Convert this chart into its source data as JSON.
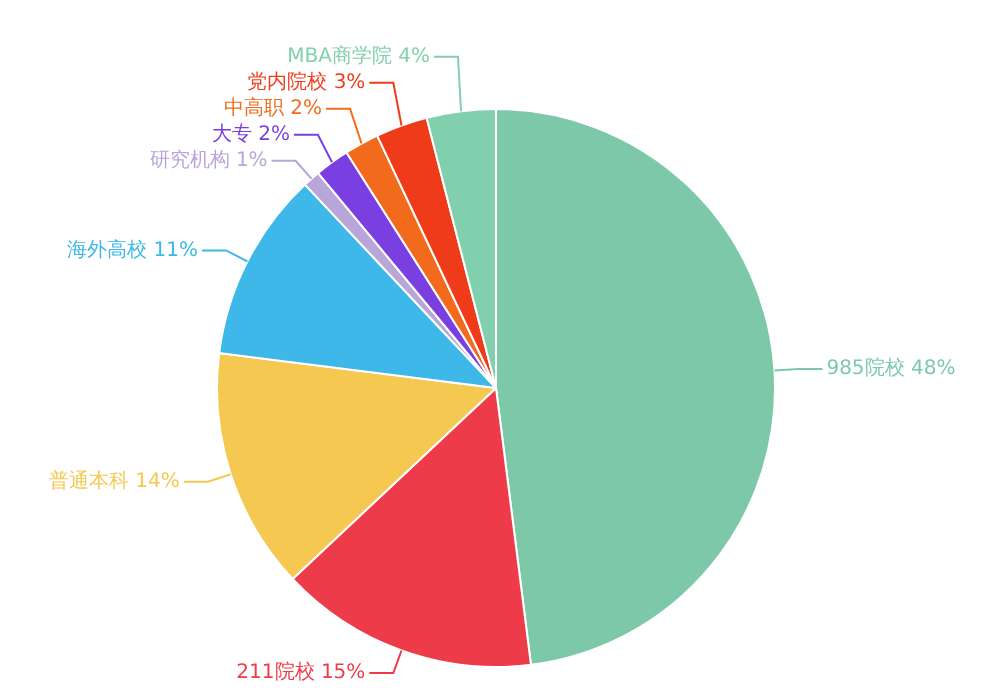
{
  "chart_data": {
    "type": "pie",
    "categories": [
      "985院校",
      "211院校",
      "普通本科",
      "海外高校",
      "研究机构",
      "大专",
      "中高职",
      "党内院校",
      "MBA商学院"
    ],
    "values": [
      48,
      15,
      14,
      11,
      1,
      2,
      2,
      3,
      4
    ],
    "value_labels": [
      "48%",
      "15%",
      "14%",
      "11%",
      "1%",
      "2%",
      "2%",
      "3%",
      "4%"
    ],
    "colors": [
      "#7dc8a8",
      "#ee3b4a",
      "#f5c851",
      "#3db8e8",
      "#b9a6d9",
      "#7a3fe0",
      "#f26b1d",
      "#f03b1a",
      "#82cfae"
    ],
    "legend": false
  }
}
